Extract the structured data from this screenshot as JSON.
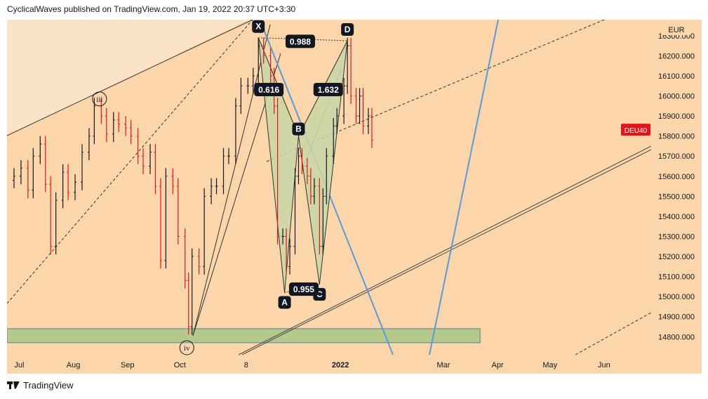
{
  "header": {
    "text": "CyclicalWaves published on TradingView.com, Jan 19, 2022 20:37 UTC+3:30"
  },
  "footer": {
    "brand": "TradingView"
  },
  "chart_data": {
    "type": "candlestick",
    "symbol_label": "DEU40",
    "currency": "EUR",
    "last_price_y": 15830,
    "y_ticks": [
      14800,
      14900,
      15000,
      15100,
      15200,
      15300,
      15400,
      15500,
      15600,
      15700,
      15800,
      15900,
      16000,
      16100,
      16200,
      16300
    ],
    "y_tick_labels": [
      "14800.000",
      "14900.000",
      "15000.000",
      "15100.000",
      "15200.000",
      "15300.000",
      "15400.000",
      "15500.000",
      "15600.000",
      "15700.000",
      "15800.000",
      "15900.000",
      "16000.000",
      "16100.000",
      "16200.000",
      "16300.000"
    ],
    "ylim": [
      14710,
      16380
    ],
    "x_labels": [
      "Jul",
      "Aug",
      "Sep",
      "Oct",
      "8",
      "2022",
      "Mar",
      "Apr",
      "May",
      "Jun"
    ],
    "x_label_dates": [
      "2021-07-01",
      "2021-08-01",
      "2021-09-01",
      "2021-10-01",
      "2021-11-08",
      "2022-01-01",
      "2022-03-01",
      "2022-04-01",
      "2022-05-01",
      "2022-06-01"
    ],
    "xlim": [
      "2021-06-24",
      "2022-06-28"
    ],
    "support_zone": {
      "y_from": 14770,
      "y_to": 14840,
      "x_from": "2021-06-24",
      "x_to": "2022-03-22",
      "color": "#b5c98a"
    },
    "harmonic_points": [
      {
        "label": "X",
        "date": "2021-11-15",
        "y": 16290
      },
      {
        "label": "A",
        "date": "2021-11-30",
        "y": 15020
      },
      {
        "label": "B",
        "date": "2021-12-08",
        "y": 15800
      },
      {
        "label": "C",
        "date": "2021-12-20",
        "y": 15060
      },
      {
        "label": "D",
        "date": "2022-01-05",
        "y": 16275
      }
    ],
    "ratios": [
      {
        "label": "0.616",
        "date": "2021-11-21",
        "y": 16030
      },
      {
        "label": "0.988",
        "date": "2021-12-09",
        "y": 16270
      },
      {
        "label": "1.632",
        "date": "2021-12-25",
        "y": 16030
      },
      {
        "label": "0.955",
        "date": "2021-12-11",
        "y": 15035
      }
    ],
    "wave_labels": [
      {
        "label": "iii",
        "date": "2021-08-16",
        "y": 15985
      },
      {
        "label": "iv",
        "date": "2021-10-05",
        "y": 14745
      }
    ],
    "close_series": [
      {
        "date": "2021-06-24",
        "y": 15580
      },
      {
        "date": "2021-06-28",
        "y": 15600
      },
      {
        "date": "2021-07-02",
        "y": 15640
      },
      {
        "date": "2021-07-06",
        "y": 15530
      },
      {
        "date": "2021-07-09",
        "y": 15700
      },
      {
        "date": "2021-07-13",
        "y": 15760
      },
      {
        "date": "2021-07-16",
        "y": 15560
      },
      {
        "date": "2021-07-19",
        "y": 15250
      },
      {
        "date": "2021-07-22",
        "y": 15480
      },
      {
        "date": "2021-07-26",
        "y": 15620
      },
      {
        "date": "2021-07-29",
        "y": 15520
      },
      {
        "date": "2021-08-02",
        "y": 15570
      },
      {
        "date": "2021-08-06",
        "y": 15720
      },
      {
        "date": "2021-08-10",
        "y": 15800
      },
      {
        "date": "2021-08-13",
        "y": 15950
      },
      {
        "date": "2021-08-17",
        "y": 15900
      },
      {
        "date": "2021-08-20",
        "y": 15810
      },
      {
        "date": "2021-08-24",
        "y": 15880
      },
      {
        "date": "2021-08-27",
        "y": 15860
      },
      {
        "date": "2021-08-31",
        "y": 15840
      },
      {
        "date": "2021-09-03",
        "y": 15800
      },
      {
        "date": "2021-09-07",
        "y": 15700
      },
      {
        "date": "2021-09-10",
        "y": 15650
      },
      {
        "date": "2021-09-14",
        "y": 15720
      },
      {
        "date": "2021-09-17",
        "y": 15550
      },
      {
        "date": "2021-09-20",
        "y": 15180
      },
      {
        "date": "2021-09-23",
        "y": 15600
      },
      {
        "date": "2021-09-27",
        "y": 15550
      },
      {
        "date": "2021-09-30",
        "y": 15300
      },
      {
        "date": "2021-10-04",
        "y": 15080
      },
      {
        "date": "2021-10-06",
        "y": 14850
      },
      {
        "date": "2021-10-08",
        "y": 15200
      },
      {
        "date": "2021-10-12",
        "y": 15150
      },
      {
        "date": "2021-10-15",
        "y": 15500
      },
      {
        "date": "2021-10-19",
        "y": 15550
      },
      {
        "date": "2021-10-22",
        "y": 15550
      },
      {
        "date": "2021-10-26",
        "y": 15700
      },
      {
        "date": "2021-10-29",
        "y": 15700
      },
      {
        "date": "2021-11-02",
        "y": 15950
      },
      {
        "date": "2021-11-05",
        "y": 16050
      },
      {
        "date": "2021-11-09",
        "y": 16050
      },
      {
        "date": "2021-11-12",
        "y": 16100
      },
      {
        "date": "2021-11-15",
        "y": 16250
      },
      {
        "date": "2021-11-18",
        "y": 16200
      },
      {
        "date": "2021-11-22",
        "y": 16100
      },
      {
        "date": "2021-11-24",
        "y": 15950
      },
      {
        "date": "2021-11-26",
        "y": 15300
      },
      {
        "date": "2021-11-29",
        "y": 15300
      },
      {
        "date": "2021-12-01",
        "y": 15150
      },
      {
        "date": "2021-12-03",
        "y": 15250
      },
      {
        "date": "2021-12-06",
        "y": 15600
      },
      {
        "date": "2021-12-08",
        "y": 15700
      },
      {
        "date": "2021-12-10",
        "y": 15650
      },
      {
        "date": "2021-12-13",
        "y": 15600
      },
      {
        "date": "2021-12-15",
        "y": 15500
      },
      {
        "date": "2021-12-17",
        "y": 15550
      },
      {
        "date": "2021-12-20",
        "y": 15250
      },
      {
        "date": "2021-12-22",
        "y": 15500
      },
      {
        "date": "2021-12-24",
        "y": 15700
      },
      {
        "date": "2021-12-28",
        "y": 15850
      },
      {
        "date": "2021-12-30",
        "y": 15900
      },
      {
        "date": "2022-01-03",
        "y": 16050
      },
      {
        "date": "2022-01-05",
        "y": 16250
      },
      {
        "date": "2022-01-07",
        "y": 16000
      },
      {
        "date": "2022-01-10",
        "y": 15900
      },
      {
        "date": "2022-01-12",
        "y": 16000
      },
      {
        "date": "2022-01-14",
        "y": 15850
      },
      {
        "date": "2022-01-17",
        "y": 15900
      },
      {
        "date": "2022-01-19",
        "y": 15780
      }
    ]
  }
}
